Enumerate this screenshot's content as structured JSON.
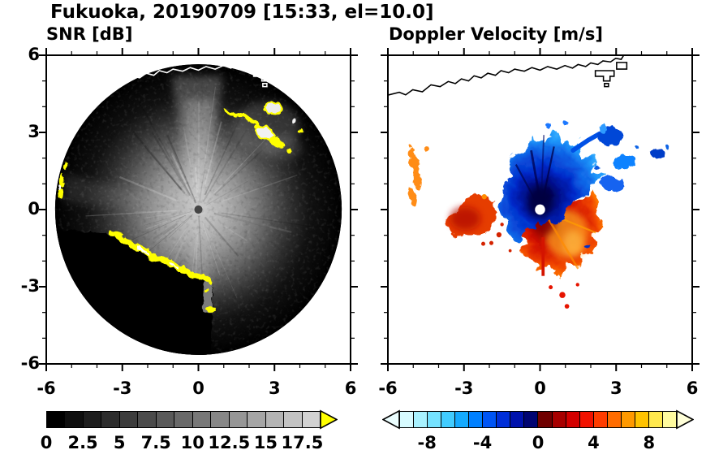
{
  "title": "Fukuoka, 20190709 [15:33, el=10.0]",
  "panels": {
    "snr": {
      "subtitle": "SNR [dB]",
      "axis": {
        "min": -6,
        "max": 6,
        "minor_step": 1,
        "major_ticks": [
          -6,
          -3,
          0,
          3,
          6
        ],
        "x_tick_labels": [
          "-6",
          "-3",
          "0",
          "3",
          "6"
        ],
        "y_tick_labels": [
          "6",
          "3",
          "0",
          "-3",
          "-6"
        ]
      },
      "colorbar": {
        "min": 0,
        "max": 18.75,
        "segments": [
          "#000000",
          "#0f0f0f",
          "#1e1e1e",
          "#2d2d2d",
          "#3c3c3c",
          "#4b4b4b",
          "#5a5a5a",
          "#696969",
          "#787878",
          "#878787",
          "#969696",
          "#a5a5a5",
          "#b4b4b4",
          "#c3c3c3",
          "#d2d2d2"
        ],
        "over_arrow_color": "#ffff00",
        "labels": [
          {
            "value": 0,
            "text": "0"
          },
          {
            "value": 2.5,
            "text": "2.5"
          },
          {
            "value": 5,
            "text": "5"
          },
          {
            "value": 7.5,
            "text": "7.5"
          },
          {
            "value": 10,
            "text": "10"
          },
          {
            "value": 12.5,
            "text": "12.5"
          },
          {
            "value": 15,
            "text": "15"
          },
          {
            "value": 17.5,
            "text": "17.5"
          }
        ]
      }
    },
    "velocity": {
      "subtitle": "Doppler Velocity [m/s]",
      "axis": {
        "min": -6,
        "max": 6,
        "minor_step": 1,
        "major_ticks": [
          -6,
          -3,
          0,
          3,
          6
        ],
        "x_tick_labels": [
          "-6",
          "-3",
          "0",
          "3",
          "6"
        ],
        "y_tick_labels": [
          "6",
          "3",
          "0",
          "-3",
          "-6"
        ]
      },
      "colorbar": {
        "min": -10,
        "max": 10,
        "segments": [
          "#d7fbff",
          "#a8f2ff",
          "#74e2ff",
          "#41ccff",
          "#14aaff",
          "#0080ff",
          "#0055f5",
          "#002fd9",
          "#0012ad",
          "#000472",
          "#700000",
          "#a80000",
          "#d40000",
          "#f21200",
          "#ff3c00",
          "#ff6c00",
          "#ff9900",
          "#ffc300",
          "#ffe84d",
          "#fffb9e"
        ],
        "under_arrow_color": "#ecfeff",
        "over_arrow_color": "#ffffd8",
        "labels": [
          {
            "value": -8,
            "text": "-8"
          },
          {
            "value": -4,
            "text": "-4"
          },
          {
            "value": 0,
            "text": "0"
          },
          {
            "value": 4,
            "text": "4"
          },
          {
            "value": 8,
            "text": "8"
          }
        ]
      }
    }
  },
  "chart_data": [
    {
      "type": "heatmap",
      "title": "SNR [dB]",
      "xlabel": "",
      "ylabel": "",
      "xlim": [
        -6,
        6
      ],
      "ylim": [
        -6,
        6
      ],
      "x_ticks": [
        -6,
        -3,
        0,
        3,
        6
      ],
      "y_ticks": [
        -6,
        -3,
        0,
        3,
        6
      ],
      "colorbar": {
        "range": [
          0,
          18.75
        ],
        "tick_values": [
          0,
          2.5,
          5,
          7.5,
          10,
          12.5,
          15,
          17.5
        ],
        "colormap": "grayscale black-to-light-gray, yellow arrow = above maximum"
      },
      "description": "Radar PPI disc of radius ~5.6 centered on the radar at (0,0). SNR is high (light gray, >12 dB) near the center and fades to black toward the disc edge, with bright radial streaks to the north and south. A sharp black (no-echo) sector fills the lower-left, bounded by a bright yellow sea-breeze-front arc running from about (-3.4,-1.0) through (-1.9,-1.9) to (0.4,-2.9). Saturated yellow/white clutter patches near (2.4-3.5, 2.2-4.0), along the west edge near (-5.5, 0.4-1.6), and an isolated yellow echo near (0.5,-3.9). Dark spot at the radar location (0,0). White coastline traced across the top at y of 4.5-6 with small island outlines near (2.2-3.4, 4.8-5.8)."
    },
    {
      "type": "heatmap",
      "title": "Doppler Velocity [m/s]",
      "xlabel": "",
      "ylabel": "",
      "xlim": [
        -6,
        6
      ],
      "ylim": [
        -6,
        6
      ],
      "x_ticks": [
        -6,
        -3,
        0,
        3,
        6
      ],
      "y_ticks": [
        -6,
        -3,
        0,
        3,
        6
      ],
      "colorbar": {
        "range": [
          -10,
          10
        ],
        "tick_values": [
          -8,
          -4,
          0,
          4,
          8
        ],
        "colormap": "pale cyan to blue to navy for negative (toward radar); dark red to red to orange to pale yellow for positive (away)"
      },
      "description": "Velocity couplet around the radar at (0,0): a blue negative-velocity lobe (about -2 to -10 m/s, darkest navy adjacent to the radar) extends north from roughly (-1.7,-0.5) to (1.5,3.0); a red-orange positive lobe (+2 to +10 m/s, dark red adjacent to the radar, bright orange near (1.1,-1.0)) extends south-southeast from about (-0.9,-2.7) to (2.5,0.6) with a thin red ray near x=0.1 down to y=-2.6. Detached red echo near (-2.9,-0.4) with speckles toward the main lobe, broken orange arc segments along the west edge near (-5.0, 0.4-2.3), scattered blue echoes east and northeast near (2.5-5.0, 0.8-3.2), and red specks near (0.9,-3.3). White dot at the radar location. Black coastline across the top."
    }
  ]
}
